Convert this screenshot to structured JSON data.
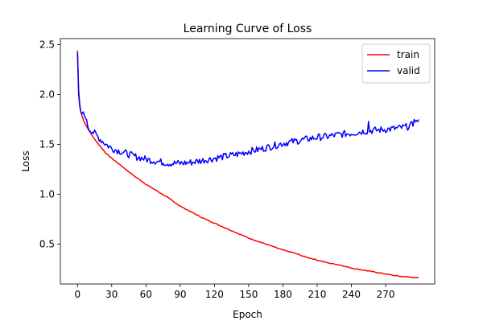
{
  "chart_data": {
    "type": "line",
    "title": "Learning Curve of Loss",
    "xlabel": "Epoch",
    "ylabel": "Loss",
    "xlim": [
      -15,
      313
    ],
    "ylim": [
      0.1,
      2.56
    ],
    "xticks": [
      0,
      30,
      60,
      90,
      120,
      150,
      180,
      210,
      240,
      270
    ],
    "yticks": [
      0.5,
      1.0,
      1.5,
      2.0,
      2.5
    ],
    "ytick_labels": [
      "0.5",
      "1.0",
      "1.5",
      "2.0",
      "2.5"
    ],
    "grid": false,
    "legend_position": "top-right",
    "series": [
      {
        "name": "train",
        "color": "#ff0000",
        "anchors": [
          [
            0,
            2.44
          ],
          [
            1,
            2.05
          ],
          [
            2,
            1.9
          ],
          [
            3,
            1.82
          ],
          [
            5,
            1.75
          ],
          [
            8,
            1.68
          ],
          [
            10,
            1.64
          ],
          [
            15,
            1.55
          ],
          [
            20,
            1.48
          ],
          [
            25,
            1.41
          ],
          [
            30,
            1.36
          ],
          [
            40,
            1.27
          ],
          [
            50,
            1.18
          ],
          [
            60,
            1.1
          ],
          [
            70,
            1.03
          ],
          [
            80,
            0.96
          ],
          [
            90,
            0.88
          ],
          [
            100,
            0.82
          ],
          [
            110,
            0.76
          ],
          [
            120,
            0.71
          ],
          [
            130,
            0.66
          ],
          [
            140,
            0.61
          ],
          [
            150,
            0.56
          ],
          [
            160,
            0.52
          ],
          [
            170,
            0.48
          ],
          [
            180,
            0.44
          ],
          [
            190,
            0.41
          ],
          [
            200,
            0.37
          ],
          [
            210,
            0.34
          ],
          [
            220,
            0.31
          ],
          [
            230,
            0.29
          ],
          [
            240,
            0.26
          ],
          [
            250,
            0.24
          ],
          [
            260,
            0.22
          ],
          [
            270,
            0.2
          ],
          [
            280,
            0.18
          ],
          [
            290,
            0.17
          ],
          [
            299,
            0.16
          ]
        ],
        "noise": 0.004
      },
      {
        "name": "valid",
        "color": "#0000ff",
        "anchors": [
          [
            0,
            2.42
          ],
          [
            1,
            2.0
          ],
          [
            2,
            1.88
          ],
          [
            3,
            1.82
          ],
          [
            5,
            1.8
          ],
          [
            7,
            1.79
          ],
          [
            8,
            1.72
          ],
          [
            10,
            1.66
          ],
          [
            15,
            1.61
          ],
          [
            20,
            1.55
          ],
          [
            25,
            1.5
          ],
          [
            30,
            1.46
          ],
          [
            40,
            1.42
          ],
          [
            50,
            1.38
          ],
          [
            60,
            1.35
          ],
          [
            70,
            1.33
          ],
          [
            80,
            1.31
          ],
          [
            90,
            1.31
          ],
          [
            100,
            1.32
          ],
          [
            110,
            1.34
          ],
          [
            120,
            1.36
          ],
          [
            130,
            1.38
          ],
          [
            140,
            1.4
          ],
          [
            150,
            1.43
          ],
          [
            160,
            1.45
          ],
          [
            170,
            1.48
          ],
          [
            180,
            1.51
          ],
          [
            190,
            1.53
          ],
          [
            200,
            1.55
          ],
          [
            210,
            1.57
          ],
          [
            220,
            1.58
          ],
          [
            230,
            1.6
          ],
          [
            240,
            1.61
          ],
          [
            250,
            1.63
          ],
          [
            260,
            1.64
          ],
          [
            270,
            1.65
          ],
          [
            280,
            1.66
          ],
          [
            290,
            1.68
          ],
          [
            299,
            1.72
          ]
        ],
        "noise": 0.035,
        "spikes": [
          [
            255,
            1.73
          ],
          [
            295,
            1.75
          ],
          [
            297,
            1.74
          ]
        ]
      }
    ]
  }
}
